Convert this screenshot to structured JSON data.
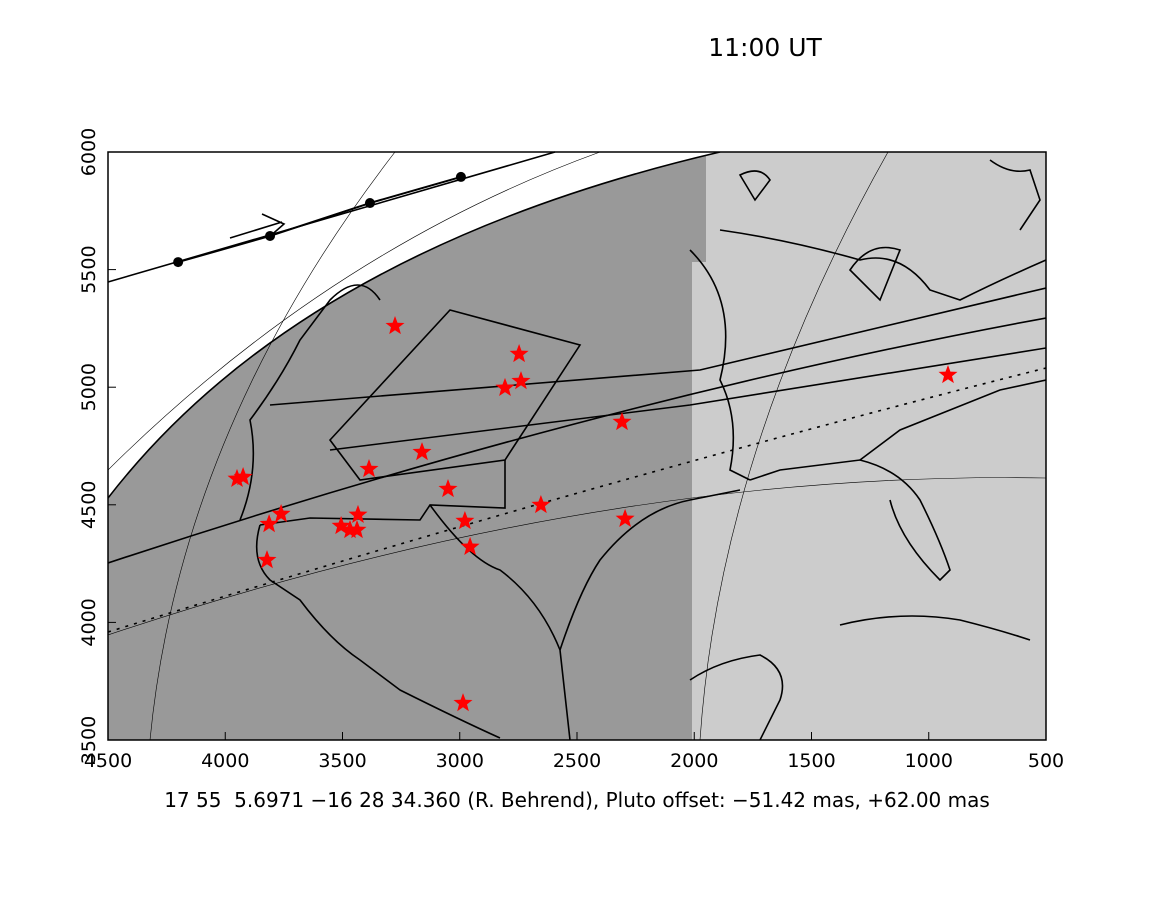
{
  "chart_data": {
    "type": "scatter",
    "title": "11:00 UT",
    "x_label": "17 55  5.6971 −16 28 34.360 (R. Behrend), Pluto offset: −51.42 mas, +62.00 mas",
    "xlim": [
      4500,
      500
    ],
    "ylim": [
      3500,
      6000
    ],
    "xticks": [
      4500,
      4000,
      3500,
      3000,
      2500,
      2000,
      1500,
      1000,
      500
    ],
    "yticks": [
      3500,
      4000,
      4500,
      5000,
      5500,
      6000
    ],
    "series": [
      {
        "color": "#ff0000",
        "marker": "star",
        "x": [
          3276,
          2747,
          2739,
          2807,
          2308,
          918,
          3161,
          3387,
          3950,
          3924,
          3050,
          2654,
          3762,
          3813,
          3434,
          3506,
          3468,
          3438,
          2978,
          2295,
          2956,
          3822,
          2986
        ],
        "y": [
          5260,
          5141,
          5026,
          4997,
          4852,
          5052,
          4724,
          4652,
          4610,
          4618,
          4567,
          4499,
          4461,
          4418,
          4457,
          4410,
          4393,
          4393,
          4431,
          4440,
          4321,
          4265,
          3657
        ]
      },
      {
        "color": "#000000",
        "marker": "dot",
        "x": [
          4201,
          3809,
          3383,
          2995
        ],
        "y": [
          5532,
          5643,
          5783,
          5894
        ]
      }
    ]
  }
}
